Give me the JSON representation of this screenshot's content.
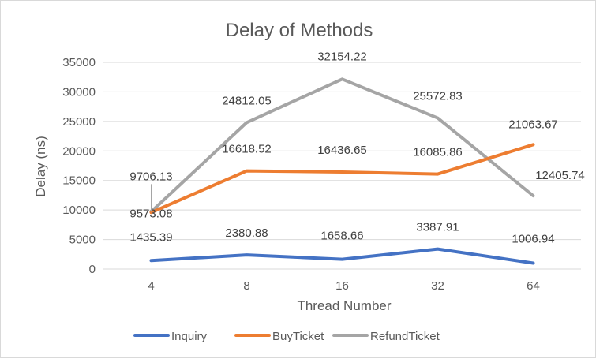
{
  "chart_data": {
    "type": "line",
    "title": "Delay of Methods",
    "xlabel": "Thread Number",
    "ylabel": "Delay (ns)",
    "categories": [
      "4",
      "8",
      "16",
      "32",
      "64"
    ],
    "ylim": [
      0,
      35000
    ],
    "yticks": [
      "0",
      "5000",
      "10000",
      "15000",
      "20000",
      "25000",
      "30000",
      "35000"
    ],
    "grid": true,
    "legend_position": "bottom",
    "series": [
      {
        "name": "Inquiry",
        "color": "#4472c4",
        "values": [
          1435.39,
          2380.88,
          1658.66,
          3387.91,
          1006.94
        ],
        "labels": [
          "1435.39",
          "2380.88",
          "1658.66",
          "3387.91",
          "1006.94"
        ]
      },
      {
        "name": "BuyTicket",
        "color": "#ed7d31",
        "values": [
          9573.08,
          16618.52,
          16436.65,
          16085.86,
          21063.67
        ],
        "labels": [
          "9573.08",
          "16618.52",
          "16436.65",
          "16085.86",
          "21063.67"
        ]
      },
      {
        "name": "RefundTicket",
        "color": "#a5a5a5",
        "values": [
          9706.13,
          24812.05,
          32154.22,
          25572.83,
          12405.74
        ],
        "labels": [
          "9706.13",
          "24812.05",
          "32154.22",
          "25572.83",
          "12405.74"
        ]
      }
    ]
  }
}
